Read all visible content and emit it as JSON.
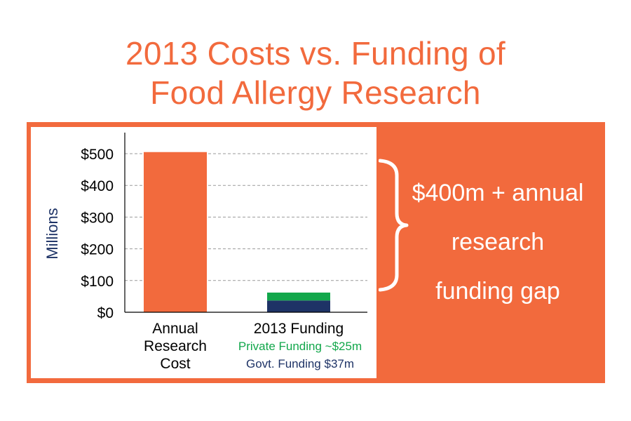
{
  "title": {
    "line1": "2013 Costs vs. Funding of",
    "line2": "Food Allergy Research"
  },
  "colors": {
    "accent": "#f26a3d",
    "private": "#12a74b",
    "govt": "#1e3366",
    "ylabel": "#1e3366"
  },
  "chart_data": {
    "type": "bar",
    "ylabel": "Millions",
    "ylim": [
      0,
      500
    ],
    "yticks": [
      0,
      100,
      200,
      300,
      400,
      500
    ],
    "ytick_labels": [
      "$0",
      "$100",
      "$200",
      "$300",
      "$400",
      "$500"
    ],
    "grid": true,
    "categories": [
      {
        "label_lines": [
          "Annual",
          "Research",
          "Cost"
        ]
      },
      {
        "label_lines": [
          "2013 Funding"
        ]
      }
    ],
    "series": [
      {
        "category": 0,
        "stack": [
          {
            "value": 505,
            "color": "#f26a3d"
          }
        ]
      },
      {
        "category": 1,
        "stack": [
          {
            "value": 37,
            "color": "#1e3366"
          },
          {
            "value": 25,
            "color": "#12a74b"
          }
        ]
      }
    ],
    "annotations": {
      "private": "Private Funding ~$25m",
      "govt": "Govt. Funding $37m"
    }
  },
  "gap": {
    "lines": [
      "$400m + annual",
      "research",
      "funding gap"
    ]
  }
}
